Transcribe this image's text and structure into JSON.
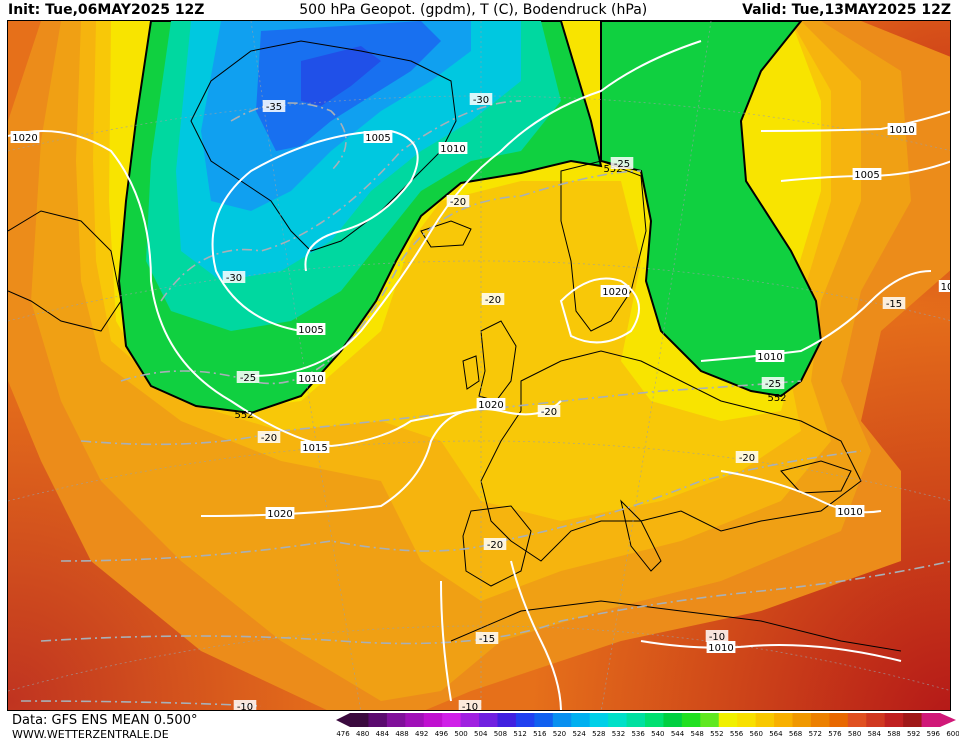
{
  "header": {
    "init": "Init: Tue,06MAY2025 12Z",
    "title": "500 hPa Geopot. (gpdm), T (C), Bodendruck (hPa)",
    "valid": "Valid: Tue,13MAY2025 12Z"
  },
  "footer": {
    "data_source": "Data: GFS ENS MEAN 0.500°",
    "website": "WWW.WETTERZENTRALE.DE"
  },
  "colorbar": {
    "levels": [
      "476",
      "480",
      "484",
      "488",
      "492",
      "496",
      "500",
      "504",
      "508",
      "512",
      "516",
      "520",
      "524",
      "528",
      "532",
      "536",
      "540",
      "544",
      "548",
      "552",
      "556",
      "560",
      "564",
      "568",
      "572",
      "576",
      "580",
      "584",
      "588",
      "592",
      "596",
      "600"
    ],
    "colors": [
      "#3a0a3e",
      "#5a0a6e",
      "#80109a",
      "#a010b8",
      "#c010d0",
      "#d020e8",
      "#a020e0",
      "#7020e0",
      "#4020e0",
      "#2040f0",
      "#1060f0",
      "#0890f0",
      "#00b0f0",
      "#00d0e8",
      "#00e0c8",
      "#00e0a0",
      "#00e070",
      "#00d040",
      "#20e020",
      "#60e820",
      "#f0f000",
      "#f8e000",
      "#f8c800",
      "#f8b000",
      "#f09800",
      "#ec8000",
      "#e86800",
      "#e05020",
      "#d03820",
      "#c02020",
      "#a01818",
      "#d01878"
    ]
  },
  "map": {
    "geopotential_labels": [
      {
        "text": "552",
        "id": "gp-552-west"
      },
      {
        "text": "552",
        "id": "gp-552-scand"
      },
      {
        "text": "552",
        "id": "gp-552-east"
      }
    ],
    "pressure_labels": [
      {
        "text": "1020",
        "id": "p-1020-nw"
      },
      {
        "text": "1005",
        "id": "p-1005-greenland"
      },
      {
        "text": "1010",
        "id": "p-1010-greenland"
      },
      {
        "text": "1005",
        "id": "p-1005-center"
      },
      {
        "text": "1010",
        "id": "p-1010-center"
      },
      {
        "text": "1015",
        "id": "p-1015-atlantic"
      },
      {
        "text": "1020",
        "id": "p-1020-atlantic"
      },
      {
        "text": "1020",
        "id": "p-1020-uk"
      },
      {
        "text": "1020",
        "id": "p-1020-scand"
      },
      {
        "text": "1010",
        "id": "p-1010-ne"
      },
      {
        "text": "1005",
        "id": "p-1005-ne"
      },
      {
        "text": "1010",
        "id": "p-1010-russia"
      },
      {
        "text": "1010",
        "id": "p-1010-turkey"
      },
      {
        "text": "1010",
        "id": "p-1010-africa"
      },
      {
        "text": "10",
        "id": "p-10-east-edge"
      }
    ],
    "temperature_labels": [
      {
        "text": "-35",
        "id": "t-m35"
      },
      {
        "text": "-30",
        "id": "t-m30-north"
      },
      {
        "text": "-30",
        "id": "t-m30-west"
      },
      {
        "text": "-25",
        "id": "t-m25-scand"
      },
      {
        "text": "-25",
        "id": "t-m25-atlantic"
      },
      {
        "text": "-25",
        "id": "t-m25-east"
      },
      {
        "text": "-20",
        "id": "t-m20-north"
      },
      {
        "text": "-20",
        "id": "t-m20-center"
      },
      {
        "text": "-20",
        "id": "t-m20-atlantic"
      },
      {
        "text": "-20",
        "id": "t-m20-france"
      },
      {
        "text": "-20",
        "id": "t-m20-iberia"
      },
      {
        "text": "-20",
        "id": "t-m20-balkan"
      },
      {
        "text": "-15",
        "id": "t-m15-east"
      },
      {
        "text": "-15",
        "id": "t-m15-south"
      },
      {
        "text": "-10",
        "id": "t-m10-africa"
      },
      {
        "text": "-10",
        "id": "t-m10-sw"
      },
      {
        "text": "-10",
        "id": "t-m10-bottom"
      }
    ]
  }
}
